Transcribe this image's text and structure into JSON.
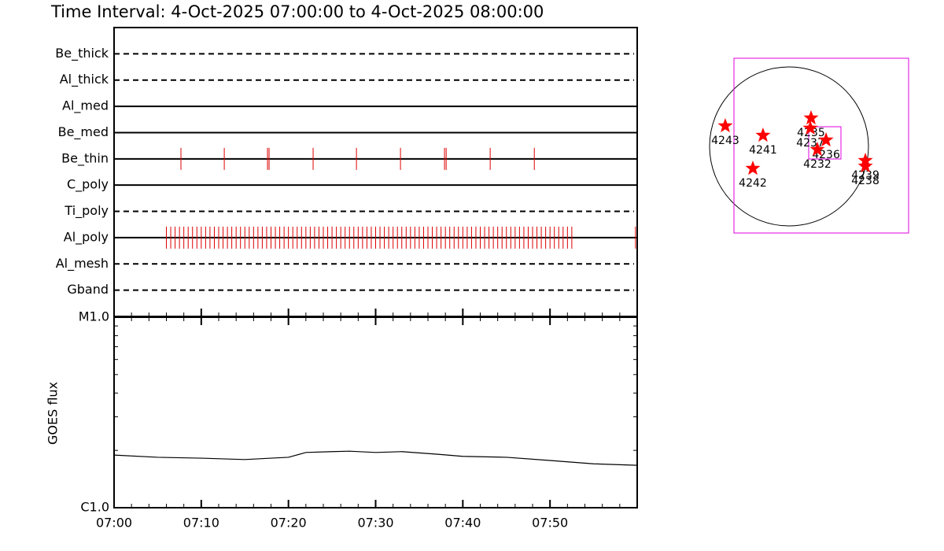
{
  "chart_data": [
    {
      "type": "event",
      "title": "Time Interval:  4-Oct-2025 07:00:00 to  4-Oct-2025 08:00:00",
      "categories": [
        "Be_thick",
        "Al_thick",
        "Al_med",
        "Be_med",
        "Be_thin",
        "C_poly",
        "Ti_poly",
        "Al_poly",
        "Al_mesh",
        "Gband"
      ],
      "line_styles": [
        "dashed",
        "dashed",
        "solid",
        "solid",
        "solid",
        "solid",
        "dashed",
        "solid",
        "dashed",
        "dashed"
      ],
      "color": "#dd0000",
      "xlim": [
        0,
        60
      ],
      "events": [
        [],
        [],
        [],
        [],
        [
          7.67,
          12.64,
          17.6,
          17.78,
          22.83,
          27.8,
          32.85,
          37.9,
          38.09,
          43.14,
          48.2
        ],
        [],
        [],
        [
          6,
          6.5,
          7,
          7.5,
          8,
          8.5,
          9,
          9.5,
          10,
          10.5,
          11,
          11.5,
          12,
          12.5,
          13,
          13.5,
          14,
          14.5,
          15,
          15.5,
          16,
          16.5,
          17,
          17.5,
          18,
          18.5,
          19,
          19.5,
          20,
          20.5,
          21,
          21.5,
          22,
          22.5,
          23,
          23.5,
          24,
          24.5,
          25,
          25.5,
          26,
          26.5,
          27,
          27.5,
          28,
          28.5,
          29,
          29.5,
          30,
          30.5,
          31,
          31.5,
          32,
          32.5,
          33,
          33.5,
          34,
          34.5,
          35,
          35.5,
          36,
          36.5,
          37,
          37.5,
          38,
          38.5,
          39,
          39.5,
          40,
          40.5,
          41,
          41.5,
          42,
          42.5,
          43,
          43.5,
          44,
          44.5,
          45,
          45.5,
          46,
          46.5,
          47,
          47.5,
          48,
          48.5,
          49,
          49.5,
          50,
          50.5,
          51,
          51.5,
          52,
          52.5,
          59.8
        ],
        [],
        []
      ]
    },
    {
      "type": "line",
      "ylabel": "GOES flux",
      "log": true,
      "color": "#000000",
      "x": [
        0,
        5,
        10,
        15,
        18,
        20,
        22,
        25,
        27,
        30,
        33,
        37,
        40,
        45,
        50,
        55,
        60
      ],
      "values": [
        1.89e-06,
        1.84e-06,
        1.82e-06,
        1.79e-06,
        1.82e-06,
        1.84e-06,
        1.95e-06,
        1.97e-06,
        1.98e-06,
        1.95e-06,
        1.97e-06,
        1.91e-06,
        1.86e-06,
        1.84e-06,
        1.77e-06,
        1.7e-06,
        1.67e-06
      ],
      "xlim": [
        0,
        60
      ],
      "xticks": [
        {
          "value": 0,
          "label": "07:00"
        },
        {
          "value": 10,
          "label": "07:10"
        },
        {
          "value": 20,
          "label": "07:20"
        },
        {
          "value": 30,
          "label": "07:30"
        },
        {
          "value": 40,
          "label": "07:40"
        },
        {
          "value": 50,
          "label": "07:50"
        }
      ],
      "ylim": [
        1e-06,
        1e-05
      ],
      "yticks": [
        {
          "value": 1e-06,
          "label": "C1.0"
        },
        {
          "value": 1e-05,
          "label": "M1.0"
        }
      ]
    },
    {
      "type": "map",
      "color": "#ff0000",
      "points": [
        {
          "label": "4243",
          "x": -770,
          "y": 247
        },
        {
          "label": "4241",
          "x": -314,
          "y": 133
        },
        {
          "label": "4235",
          "x": 266,
          "y": 342
        },
        {
          "label": "4237",
          "x": 257,
          "y": 219
        },
        {
          "label": "4236",
          "x": 447,
          "y": 76
        },
        {
          "label": "4232",
          "x": 342,
          "y": -38
        },
        {
          "label": "4242",
          "x": -437,
          "y": -266
        },
        {
          "label": "4239",
          "x": 922,
          "y": -171
        },
        {
          "label": "4238",
          "x": 922,
          "y": -238
        }
      ]
    }
  ]
}
